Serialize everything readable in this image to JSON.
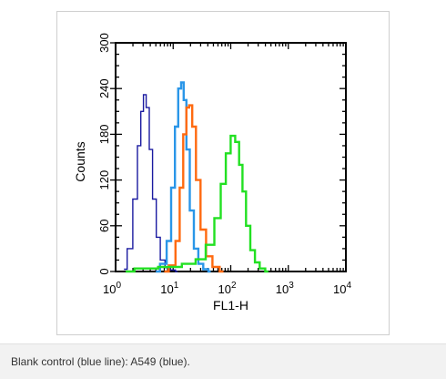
{
  "caption": "Blank control (blue line): A549 (blue).",
  "chart_data": {
    "type": "line",
    "subtype": "flow-cytometry histogram overlay",
    "xlabel": "FL1-H",
    "ylabel": "Counts",
    "xscale": "log",
    "xlim": [
      1,
      10000
    ],
    "ylim": [
      0,
      300
    ],
    "x_ticks": [
      {
        "base": "10",
        "exp": "0"
      },
      {
        "base": "10",
        "exp": "1"
      },
      {
        "base": "10",
        "exp": "2"
      },
      {
        "base": "10",
        "exp": "3"
      },
      {
        "base": "10",
        "exp": "4"
      }
    ],
    "y_ticks": [
      "0",
      "60",
      "120",
      "180",
      "240",
      "300"
    ],
    "grid": false,
    "series": [
      {
        "color": "#1a1aa0",
        "x": [
          1.4,
          1.8,
          2.2,
          2.6,
          2.9,
          3.2,
          3.6,
          4.1,
          4.7,
          5.5,
          6.5,
          8,
          10,
          12
        ],
        "y": [
          3,
          30,
          95,
          165,
          210,
          232,
          215,
          160,
          95,
          45,
          15,
          5,
          2,
          0
        ]
      },
      {
        "color": "#2a96e8",
        "x": [
          5,
          7,
          8.5,
          10,
          11.5,
          13,
          14.5,
          16,
          18,
          21,
          25,
          30,
          37,
          45
        ],
        "y": [
          0,
          10,
          40,
          110,
          190,
          240,
          248,
          225,
          160,
          80,
          30,
          10,
          3,
          0
        ]
      },
      {
        "color": "#ff6a10",
        "x": [
          7,
          10,
          12,
          14,
          16,
          18,
          20,
          23,
          27,
          33,
          42,
          55,
          75
        ],
        "y": [
          0,
          8,
          40,
          110,
          180,
          215,
          218,
          190,
          120,
          55,
          20,
          6,
          0
        ]
      },
      {
        "color": "#22e022",
        "x": [
          1.5,
          3,
          10,
          20,
          30,
          45,
          60,
          75,
          90,
          110,
          130,
          150,
          170,
          200,
          240,
          290,
          350,
          450
        ],
        "y": [
          0,
          4,
          6,
          10,
          16,
          35,
          70,
          115,
          155,
          178,
          170,
          140,
          105,
          60,
          28,
          12,
          4,
          0
        ]
      }
    ]
  }
}
